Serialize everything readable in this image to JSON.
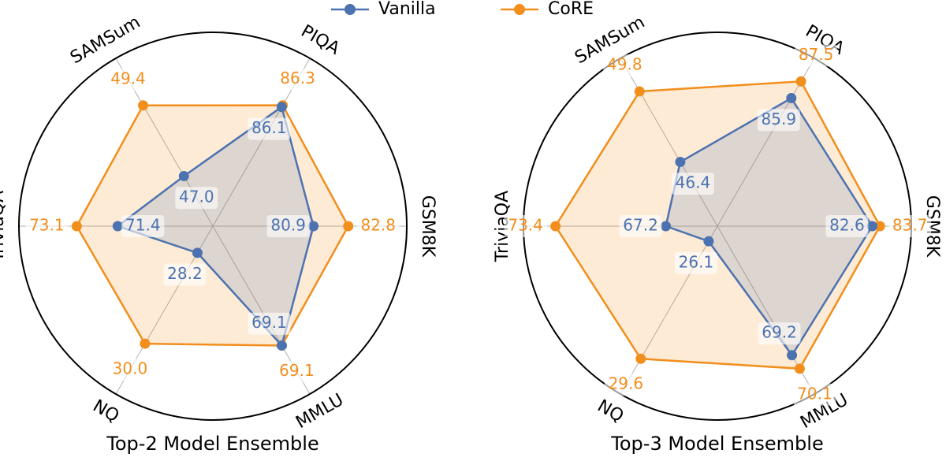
{
  "chart_data": [
    {
      "type": "radar",
      "title": "Top-2 Model Ensemble",
      "categories": [
        "GSM8K",
        "PIQA",
        "SAMSum",
        "TriviaQA",
        "NQ",
        "MMLU"
      ],
      "rlims": [
        [
          75.4,
          86.0
        ],
        [
          71.9,
          91.9
        ],
        [
          45.3,
          51.0
        ],
        [
          67.45,
          75.5
        ],
        [
          27.67,
          31.0
        ],
        [
          60.0,
          72.8
        ]
      ],
      "series": [
        {
          "name": "Vanilla",
          "color": "#4c72b0",
          "values": [
            80.9,
            86.1,
            47.0,
            71.4,
            28.2,
            69.1
          ],
          "value_labels": [
            "80.9",
            "86.1",
            "47.0",
            "71.4",
            "28.2",
            "69.1"
          ]
        },
        {
          "name": "CoRE",
          "color": "#f28e1c",
          "values": [
            82.8,
            86.3,
            49.4,
            73.1,
            30.0,
            69.1
          ],
          "value_labels": [
            "82.8",
            "86.3",
            "49.4",
            "73.1",
            "30.0",
            "69.1"
          ]
        }
      ]
    },
    {
      "type": "radar",
      "title": "Top-3 Model Ensemble",
      "categories": [
        "GSM8K",
        "PIQA",
        "SAMSum",
        "TriviaQA",
        "NQ",
        "MMLU"
      ],
      "rlims": [
        [
          60.4,
          88.2
        ],
        [
          73.7,
          89.7
        ],
        [
          43.3,
          51.4
        ],
        [
          64.3,
          75.2
        ],
        [
          25.65,
          30.65
        ],
        [
          60.55,
          71.8
        ]
      ],
      "series": [
        {
          "name": "Vanilla",
          "color": "#4c72b0",
          "values": [
            82.6,
            85.9,
            46.4,
            67.2,
            26.1,
            69.2
          ],
          "value_labels": [
            "82.6",
            "85.9",
            "46.4",
            "67.2",
            "26.1",
            "69.2"
          ]
        },
        {
          "name": "CoRE",
          "color": "#f28e1c",
          "values": [
            83.7,
            87.5,
            49.8,
            73.4,
            29.6,
            70.1
          ],
          "value_labels": [
            "83.7",
            "87.5",
            "49.8",
            "73.4",
            "29.6",
            "70.1"
          ]
        }
      ]
    }
  ]
}
